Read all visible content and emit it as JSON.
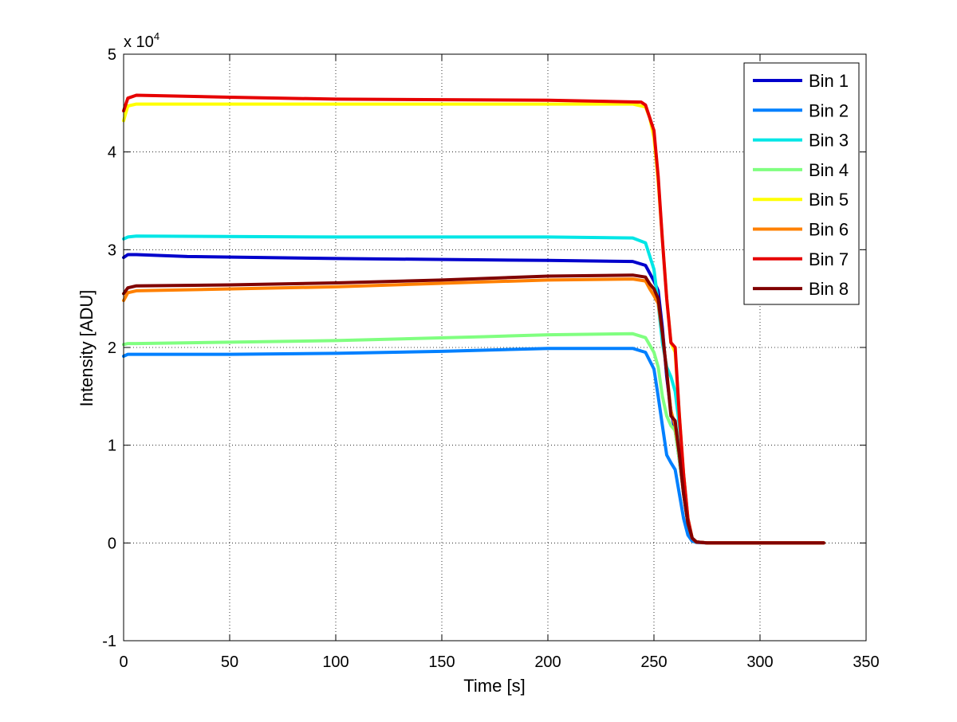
{
  "chart_data": {
    "type": "line",
    "title": "",
    "xlabel": "Time [s]",
    "ylabel": "Intensity [ADU]",
    "y_exponent_label": "x 10",
    "y_exponent_power": "4",
    "xlim": [
      0,
      350
    ],
    "ylim": [
      -10000,
      50000
    ],
    "x_ticks": [
      0,
      50,
      100,
      150,
      200,
      250,
      300,
      350
    ],
    "x_tick_labels": [
      "0",
      "50",
      "100",
      "150",
      "200",
      "250",
      "300",
      "350"
    ],
    "y_ticks": [
      -10000,
      0,
      10000,
      20000,
      30000,
      40000,
      50000
    ],
    "y_tick_labels": [
      "-1",
      "0",
      "1",
      "2",
      "3",
      "4",
      "5"
    ],
    "grid": true,
    "legend_position": "top-right",
    "series": [
      {
        "name": "Bin 1",
        "color": "#0000cc",
        "x": [
          0,
          2,
          6,
          30,
          100,
          200,
          240,
          246,
          250,
          252,
          254,
          256,
          258,
          260,
          262,
          264,
          266,
          268,
          270,
          275,
          330
        ],
        "y": [
          29200,
          29500,
          29500,
          29300,
          29100,
          28900,
          28800,
          28400,
          26800,
          25800,
          22000,
          17000,
          13500,
          11500,
          8500,
          5000,
          2000,
          500,
          100,
          0,
          0
        ]
      },
      {
        "name": "Bin 2",
        "color": "#0080ff",
        "x": [
          0,
          2,
          6,
          50,
          100,
          150,
          200,
          240,
          246,
          250,
          252,
          254,
          256,
          258,
          260,
          262,
          264,
          266,
          268,
          270,
          275,
          330
        ],
        "y": [
          19100,
          19300,
          19300,
          19300,
          19400,
          19600,
          19900,
          19900,
          19500,
          17800,
          15000,
          12000,
          9000,
          8200,
          7500,
          5000,
          2500,
          800,
          200,
          50,
          0,
          0
        ]
      },
      {
        "name": "Bin 3",
        "color": "#00e6e6",
        "x": [
          0,
          2,
          6,
          100,
          200,
          240,
          246,
          250,
          252,
          254,
          256,
          258,
          260,
          262,
          264,
          266,
          268,
          270,
          275,
          330
        ],
        "y": [
          31100,
          31300,
          31400,
          31300,
          31300,
          31200,
          30700,
          28000,
          24500,
          20500,
          18000,
          17000,
          15500,
          12000,
          7000,
          2500,
          500,
          100,
          0,
          0
        ]
      },
      {
        "name": "Bin 4",
        "color": "#80ff80",
        "x": [
          0,
          2,
          6,
          100,
          170,
          200,
          240,
          246,
          250,
          252,
          254,
          256,
          258,
          260,
          262,
          264,
          266,
          268,
          270,
          275,
          330
        ],
        "y": [
          20300,
          20400,
          20400,
          20700,
          21100,
          21300,
          21400,
          21000,
          19500,
          18000,
          15000,
          13000,
          12000,
          11500,
          8500,
          5000,
          2000,
          500,
          100,
          0,
          0
        ]
      },
      {
        "name": "Bin 5",
        "color": "#ffff00",
        "x": [
          0,
          2,
          6,
          100,
          200,
          240,
          246,
          248,
          250,
          252,
          254,
          256,
          258,
          260,
          262,
          264,
          266,
          268,
          270,
          275,
          330
        ],
        "y": [
          43200,
          44700,
          44900,
          44900,
          44900,
          44900,
          44600,
          43500,
          41500,
          37000,
          31000,
          25000,
          20500,
          19500,
          13000,
          7000,
          2500,
          500,
          100,
          0,
          0
        ]
      },
      {
        "name": "Bin 6",
        "color": "#ff8000",
        "x": [
          0,
          2,
          6,
          100,
          170,
          200,
          240,
          246,
          248,
          250,
          252,
          254,
          256,
          258,
          260,
          262,
          264,
          266,
          268,
          270,
          275,
          330
        ],
        "y": [
          24800,
          25600,
          25800,
          26200,
          26700,
          26900,
          27000,
          26800,
          26000,
          25300,
          24500,
          21500,
          17500,
          13500,
          12000,
          9000,
          5000,
          2000,
          500,
          100,
          0,
          0
        ]
      },
      {
        "name": "Bin 7",
        "color": "#e60000",
        "x": [
          0,
          2,
          6,
          50,
          100,
          200,
          244,
          246,
          248,
          250,
          252,
          254,
          256,
          258,
          260,
          262,
          264,
          266,
          268,
          270,
          275,
          330
        ],
        "y": [
          44200,
          45500,
          45800,
          45600,
          45400,
          45300,
          45100,
          44800,
          43500,
          42200,
          37500,
          31000,
          25000,
          20500,
          20000,
          13000,
          7000,
          2500,
          500,
          100,
          0,
          0
        ]
      },
      {
        "name": "Bin 8",
        "color": "#800000",
        "x": [
          0,
          2,
          6,
          50,
          100,
          150,
          200,
          240,
          246,
          248,
          250,
          252,
          254,
          256,
          258,
          260,
          262,
          264,
          266,
          268,
          270,
          275,
          330
        ],
        "y": [
          25500,
          26100,
          26300,
          26400,
          26600,
          26900,
          27300,
          27400,
          27200,
          26500,
          26000,
          25000,
          21500,
          17500,
          13000,
          12500,
          9000,
          5000,
          2000,
          500,
          100,
          0,
          0
        ]
      }
    ]
  }
}
